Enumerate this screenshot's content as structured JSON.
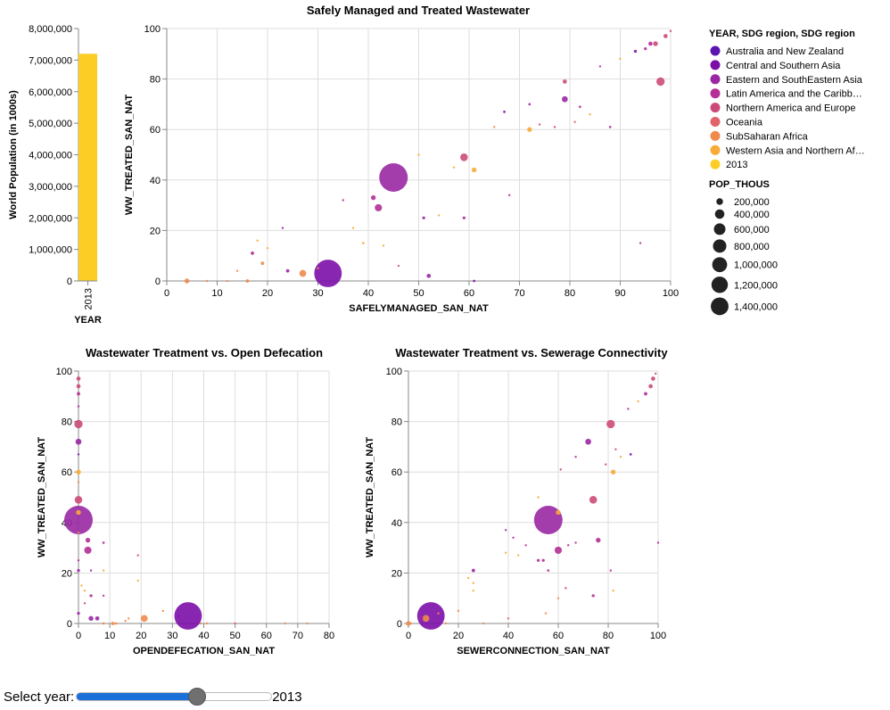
{
  "slider": {
    "label": "Select year:",
    "value": "2013",
    "fraction": 0.62
  },
  "chart_data": [
    {
      "type": "bar",
      "categories": [
        "2013"
      ],
      "values": [
        7200000
      ],
      "xlabel": "YEAR",
      "ylabel": "World Population (in 1000s)",
      "ylim": [
        0,
        8000000
      ],
      "ticks": [
        "0",
        "1,000,000",
        "2,000,000",
        "3,000,000",
        "4,000,000",
        "5,000,000",
        "6,000,000",
        "7,000,000",
        "8,000,000"
      ],
      "color": "#fcce25"
    },
    {
      "type": "scatter",
      "title": "Safely Managed and Treated Wastewater",
      "xlabel": "SAFELYMANAGED_SAN_NAT",
      "ylabel": "WW_TREATED_SAN_NAT",
      "xlim": [
        0,
        100
      ],
      "ylim": [
        0,
        100
      ],
      "xticks": [
        "0",
        "10",
        "20",
        "30",
        "40",
        "50",
        "60",
        "70",
        "80",
        "90",
        "100"
      ],
      "yticks": [
        "0",
        "20",
        "40",
        "60",
        "80",
        "100"
      ],
      "grid": true,
      "points": [
        {
          "x": 45,
          "y": 41,
          "size": 1400000,
          "region": 2
        },
        {
          "x": 32,
          "y": 3,
          "size": 1300000,
          "region": 1
        },
        {
          "x": 98,
          "y": 79,
          "size": 120000,
          "region": 4
        },
        {
          "x": 59,
          "y": 49,
          "size": 100000,
          "region": 4
        },
        {
          "x": 42,
          "y": 29,
          "size": 90000,
          "region": 3
        },
        {
          "x": 27,
          "y": 3,
          "size": 80000,
          "region": 6
        },
        {
          "x": 79,
          "y": 72,
          "size": 60000,
          "region": 2
        },
        {
          "x": 41,
          "y": 33,
          "size": 40000,
          "region": 3
        },
        {
          "x": 61,
          "y": 44,
          "size": 40000,
          "region": 7
        },
        {
          "x": 72,
          "y": 60,
          "size": 40000,
          "region": 7
        },
        {
          "x": 79,
          "y": 79,
          "size": 30000,
          "region": 4
        },
        {
          "x": 97,
          "y": 94,
          "size": 40000,
          "region": 4
        },
        {
          "x": 96,
          "y": 94,
          "size": 30000,
          "region": 3
        },
        {
          "x": 99,
          "y": 97,
          "size": 30000,
          "region": 4
        },
        {
          "x": 4,
          "y": 0,
          "size": 40000,
          "region": 6
        },
        {
          "x": 16,
          "y": 0,
          "size": 20000,
          "region": 6
        },
        {
          "x": 52,
          "y": 2,
          "size": 30000,
          "region": 2
        },
        {
          "x": 24,
          "y": 4,
          "size": 20000,
          "region": 2
        },
        {
          "x": 19,
          "y": 7,
          "size": 20000,
          "region": 6
        },
        {
          "x": 23,
          "y": 21,
          "size": 8000,
          "region": 2
        },
        {
          "x": 17,
          "y": 11,
          "size": 20000,
          "region": 3
        },
        {
          "x": 37,
          "y": 21,
          "size": 8000,
          "region": 7
        },
        {
          "x": 39,
          "y": 15,
          "size": 10000,
          "region": 7
        },
        {
          "x": 18,
          "y": 16,
          "size": 8000,
          "region": 7
        },
        {
          "x": 51,
          "y": 25,
          "size": 15000,
          "region": 2
        },
        {
          "x": 59,
          "y": 25,
          "size": 15000,
          "region": 3
        },
        {
          "x": 67,
          "y": 67,
          "size": 10000,
          "region": 1
        },
        {
          "x": 68,
          "y": 34,
          "size": 8000,
          "region": 3
        },
        {
          "x": 72,
          "y": 70,
          "size": 10000,
          "region": 2
        },
        {
          "x": 93,
          "y": 91,
          "size": 15000,
          "region": 1
        },
        {
          "x": 95,
          "y": 92,
          "size": 15000,
          "region": 3
        },
        {
          "x": 82,
          "y": 69,
          "size": 10000,
          "region": 3
        },
        {
          "x": 88,
          "y": 61,
          "size": 10000,
          "region": 3
        },
        {
          "x": 61,
          "y": 0,
          "size": 10000,
          "region": 1
        },
        {
          "x": 50,
          "y": 50,
          "size": 5000,
          "region": 7
        },
        {
          "x": 20,
          "y": 13,
          "size": 5000,
          "region": 7
        },
        {
          "x": 12,
          "y": 0,
          "size": 5000,
          "region": 6
        },
        {
          "x": 8,
          "y": 0,
          "size": 5000,
          "region": 6
        },
        {
          "x": 35,
          "y": 32,
          "size": 5000,
          "region": 3
        },
        {
          "x": 43,
          "y": 14,
          "size": 5000,
          "region": 7
        },
        {
          "x": 74,
          "y": 62,
          "size": 5000,
          "region": 4
        },
        {
          "x": 84,
          "y": 66,
          "size": 5000,
          "region": 7
        },
        {
          "x": 90,
          "y": 88,
          "size": 5000,
          "region": 7
        },
        {
          "x": 100,
          "y": 99,
          "size": 5000,
          "region": 4
        },
        {
          "x": 65,
          "y": 61,
          "size": 5000,
          "region": 6
        },
        {
          "x": 77,
          "y": 61,
          "size": 5000,
          "region": 4
        },
        {
          "x": 46,
          "y": 6,
          "size": 5000,
          "region": 4
        },
        {
          "x": 54,
          "y": 26,
          "size": 5000,
          "region": 7
        },
        {
          "x": 14,
          "y": 4,
          "size": 5000,
          "region": 6
        },
        {
          "x": 30,
          "y": 5,
          "size": 5000,
          "region": 6
        },
        {
          "x": 86,
          "y": 85,
          "size": 5000,
          "region": 3
        },
        {
          "x": 94,
          "y": 15,
          "size": 5000,
          "region": 3
        },
        {
          "x": 57,
          "y": 45,
          "size": 5000,
          "region": 7
        },
        {
          "x": 81,
          "y": 63,
          "size": 5000,
          "region": 5
        }
      ]
    },
    {
      "type": "scatter",
      "title": "Wastewater Treatment vs. Open Defecation",
      "xlabel": "OPENDEFECATION_SAN_NAT",
      "ylabel": "WW_TREATED_SAN_NAT",
      "xlim": [
        0,
        80
      ],
      "ylim": [
        0,
        100
      ],
      "xticks": [
        "0",
        "10",
        "20",
        "30",
        "40",
        "50",
        "60",
        "70",
        "80"
      ],
      "yticks": [
        "0",
        "20",
        "40",
        "60",
        "80",
        "100"
      ],
      "grid": true,
      "points": [
        {
          "x": 0,
          "y": 41,
          "size": 1400000,
          "region": 2
        },
        {
          "x": 35,
          "y": 3,
          "size": 1300000,
          "region": 1
        },
        {
          "x": 0,
          "y": 79,
          "size": 120000,
          "region": 4
        },
        {
          "x": 0,
          "y": 49,
          "size": 100000,
          "region": 4
        },
        {
          "x": 3,
          "y": 29,
          "size": 90000,
          "region": 3
        },
        {
          "x": 21,
          "y": 2,
          "size": 80000,
          "region": 6
        },
        {
          "x": 0,
          "y": 72,
          "size": 60000,
          "region": 2
        },
        {
          "x": 3,
          "y": 33,
          "size": 40000,
          "region": 3
        },
        {
          "x": 0,
          "y": 44,
          "size": 40000,
          "region": 7
        },
        {
          "x": 0,
          "y": 60,
          "size": 40000,
          "region": 7
        },
        {
          "x": 0,
          "y": 94,
          "size": 30000,
          "region": 4
        },
        {
          "x": 0,
          "y": 97,
          "size": 30000,
          "region": 4
        },
        {
          "x": 0,
          "y": 91,
          "size": 20000,
          "region": 3
        },
        {
          "x": 4,
          "y": 2,
          "size": 40000,
          "region": 2
        },
        {
          "x": 6,
          "y": 2,
          "size": 30000,
          "region": 2
        },
        {
          "x": 0,
          "y": 21,
          "size": 15000,
          "region": 2
        },
        {
          "x": 0,
          "y": 4,
          "size": 15000,
          "region": 2
        },
        {
          "x": 4,
          "y": 11,
          "size": 15000,
          "region": 3
        },
        {
          "x": 8,
          "y": 32,
          "size": 10000,
          "region": 3
        },
        {
          "x": 11,
          "y": 0,
          "size": 20000,
          "region": 6
        },
        {
          "x": 12,
          "y": 0,
          "size": 10000,
          "region": 6
        },
        {
          "x": 8,
          "y": 0,
          "size": 10000,
          "region": 6
        },
        {
          "x": 8,
          "y": 21,
          "size": 8000,
          "region": 7
        },
        {
          "x": 19,
          "y": 17,
          "size": 5000,
          "region": 7
        },
        {
          "x": 2,
          "y": 13,
          "size": 8000,
          "region": 7
        },
        {
          "x": 0,
          "y": 25,
          "size": 8000,
          "region": 3
        },
        {
          "x": 0,
          "y": 67,
          "size": 8000,
          "region": 1
        },
        {
          "x": 0,
          "y": 86,
          "size": 5000,
          "region": 3
        },
        {
          "x": 0,
          "y": 56,
          "size": 5000,
          "region": 6
        },
        {
          "x": 0,
          "y": 36,
          "size": 5000,
          "region": 6
        },
        {
          "x": 1,
          "y": 15,
          "size": 5000,
          "region": 7
        },
        {
          "x": 4,
          "y": 21,
          "size": 5000,
          "region": 2
        },
        {
          "x": 19,
          "y": 27,
          "size": 5000,
          "region": 4
        },
        {
          "x": 32,
          "y": 3,
          "size": 5000,
          "region": 1
        },
        {
          "x": 39,
          "y": 0,
          "size": 5000,
          "region": 6
        },
        {
          "x": 41,
          "y": 0,
          "size": 5000,
          "region": 6
        },
        {
          "x": 16,
          "y": 2,
          "size": 5000,
          "region": 6
        },
        {
          "x": 15,
          "y": 1,
          "size": 5000,
          "region": 6
        },
        {
          "x": 27,
          "y": 5,
          "size": 5000,
          "region": 6
        },
        {
          "x": 73,
          "y": 0,
          "size": 5000,
          "region": 6
        },
        {
          "x": 66,
          "y": 0,
          "size": 5000,
          "region": 6
        },
        {
          "x": 50,
          "y": 0,
          "size": 5000,
          "region": 5
        },
        {
          "x": 2,
          "y": 8,
          "size": 5000,
          "region": 4
        },
        {
          "x": 8,
          "y": 11,
          "size": 5000,
          "region": 3
        }
      ]
    },
    {
      "type": "scatter",
      "title": "Wastewater Treatment vs. Sewerage Connectivity",
      "xlabel": "SEWERCONNECTION_SAN_NAT",
      "ylabel": "WW_TREATED_SAN_NAT",
      "xlim": [
        0,
        100
      ],
      "ylim": [
        0,
        100
      ],
      "xticks": [
        "0",
        "20",
        "40",
        "60",
        "80",
        "100"
      ],
      "yticks": [
        "0",
        "20",
        "40",
        "60",
        "80",
        "100"
      ],
      "grid": true,
      "points": [
        {
          "x": 56,
          "y": 41,
          "size": 1400000,
          "region": 2
        },
        {
          "x": 9,
          "y": 3,
          "size": 1300000,
          "region": 1
        },
        {
          "x": 81,
          "y": 79,
          "size": 120000,
          "region": 4
        },
        {
          "x": 74,
          "y": 49,
          "size": 100000,
          "region": 4
        },
        {
          "x": 60,
          "y": 29,
          "size": 90000,
          "region": 3
        },
        {
          "x": 7,
          "y": 2,
          "size": 80000,
          "region": 6
        },
        {
          "x": 72,
          "y": 72,
          "size": 60000,
          "region": 2
        },
        {
          "x": 76,
          "y": 33,
          "size": 40000,
          "region": 3
        },
        {
          "x": 60,
          "y": 44,
          "size": 40000,
          "region": 7
        },
        {
          "x": 82,
          "y": 60,
          "size": 40000,
          "region": 7
        },
        {
          "x": 0,
          "y": 0,
          "size": 40000,
          "region": 6
        },
        {
          "x": 97,
          "y": 94,
          "size": 30000,
          "region": 4
        },
        {
          "x": 98,
          "y": 97,
          "size": 30000,
          "region": 4
        },
        {
          "x": 95,
          "y": 91,
          "size": 20000,
          "region": 3
        },
        {
          "x": 26,
          "y": 21,
          "size": 20000,
          "region": 2
        },
        {
          "x": 5,
          "y": 2,
          "size": 30000,
          "region": 2
        },
        {
          "x": 74,
          "y": 11,
          "size": 15000,
          "region": 3
        },
        {
          "x": 54,
          "y": 25,
          "size": 15000,
          "region": 3
        },
        {
          "x": 52,
          "y": 25,
          "size": 15000,
          "region": 3
        },
        {
          "x": 56,
          "y": 21,
          "size": 10000,
          "region": 3
        },
        {
          "x": 89,
          "y": 67,
          "size": 10000,
          "region": 1
        },
        {
          "x": 81,
          "y": 21,
          "size": 8000,
          "region": 3
        },
        {
          "x": 82,
          "y": 13,
          "size": 8000,
          "region": 7
        },
        {
          "x": 67,
          "y": 32,
          "size": 8000,
          "region": 3
        },
        {
          "x": 64,
          "y": 31,
          "size": 8000,
          "region": 3
        },
        {
          "x": 39,
          "y": 37,
          "size": 8000,
          "region": 2
        },
        {
          "x": 42,
          "y": 34,
          "size": 8000,
          "region": 3
        },
        {
          "x": 47,
          "y": 31,
          "size": 5000,
          "region": 3
        },
        {
          "x": 52,
          "y": 50,
          "size": 8000,
          "region": 7
        },
        {
          "x": 61,
          "y": 61,
          "size": 5000,
          "region": 4
        },
        {
          "x": 67,
          "y": 66,
          "size": 5000,
          "region": 3
        },
        {
          "x": 83,
          "y": 69,
          "size": 5000,
          "region": 4
        },
        {
          "x": 26,
          "y": 13,
          "size": 5000,
          "region": 7
        },
        {
          "x": 26,
          "y": 16,
          "size": 5000,
          "region": 7
        },
        {
          "x": 24,
          "y": 18,
          "size": 5000,
          "region": 7
        },
        {
          "x": 39,
          "y": 28,
          "size": 5000,
          "region": 7
        },
        {
          "x": 44,
          "y": 27,
          "size": 5000,
          "region": 7
        },
        {
          "x": 20,
          "y": 5,
          "size": 5000,
          "region": 6
        },
        {
          "x": 12,
          "y": 4,
          "size": 5000,
          "region": 6
        },
        {
          "x": 15,
          "y": 0,
          "size": 5000,
          "region": 6
        },
        {
          "x": 1,
          "y": 0,
          "size": 5000,
          "region": 6
        },
        {
          "x": 30,
          "y": 0,
          "size": 5000,
          "region": 6
        },
        {
          "x": 60,
          "y": 10,
          "size": 5000,
          "region": 6
        },
        {
          "x": 63,
          "y": 14,
          "size": 5000,
          "region": 4
        },
        {
          "x": 88,
          "y": 85,
          "size": 5000,
          "region": 3
        },
        {
          "x": 92,
          "y": 88,
          "size": 5000,
          "region": 7
        },
        {
          "x": 99,
          "y": 99,
          "size": 5000,
          "region": 4
        },
        {
          "x": 100,
          "y": 32,
          "size": 5000,
          "region": 3
        },
        {
          "x": 79,
          "y": 63,
          "size": 5000,
          "region": 4
        },
        {
          "x": 85,
          "y": 66,
          "size": 5000,
          "region": 7
        },
        {
          "x": 40,
          "y": 2,
          "size": 5000,
          "region": 5
        },
        {
          "x": 55,
          "y": 4,
          "size": 5000,
          "region": 6
        }
      ]
    }
  ],
  "legend": {
    "color_title": "YEAR, SDG region, SDG region",
    "color_items": [
      {
        "label": "Australia and New Zealand",
        "color": "#5b14b0"
      },
      {
        "label": "Central and Southern Asia",
        "color": "#7c0ea8"
      },
      {
        "label": "Eastern and SouthEastern Asia",
        "color": "#9a28a3"
      },
      {
        "label": "Latin America and the Caribb…",
        "color": "#b42f96"
      },
      {
        "label": "Northern America and Europe",
        "color": "#cc4a78"
      },
      {
        "label": "Oceania",
        "color": "#e0646a"
      },
      {
        "label": "SubSaharan Africa",
        "color": "#ef8a4d"
      },
      {
        "label": "Western Asia and Northern Af…",
        "color": "#f8ab38"
      },
      {
        "label": "2013",
        "color": "#fcce25"
      }
    ],
    "size_title": "POP_THOUS",
    "size_items": [
      {
        "label": "200,000",
        "value": 200000
      },
      {
        "label": "400,000",
        "value": 400000
      },
      {
        "label": "600,000",
        "value": 600000
      },
      {
        "label": "800,000",
        "value": 800000
      },
      {
        "label": "1,000,000",
        "value": 1000000
      },
      {
        "label": "1,200,000",
        "value": 1200000
      },
      {
        "label": "1,400,000",
        "value": 1400000
      }
    ]
  }
}
